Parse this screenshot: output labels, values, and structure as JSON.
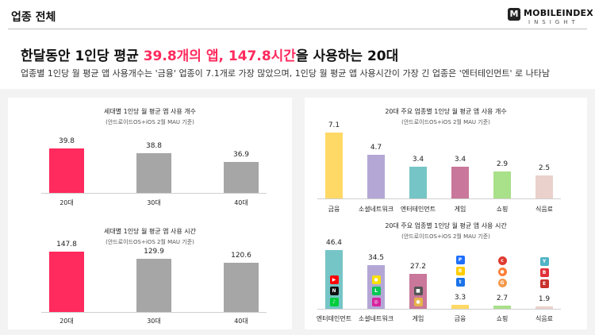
{
  "header": {
    "section_title": "업종 전체",
    "logo_mark": "M",
    "logo_name": "MOBILEINDEX",
    "logo_sub": "INSIGHT"
  },
  "headline": {
    "part1": "한달동안 1인당 평균 ",
    "highlight": "39.8개의 앱, 147.8시간",
    "part2": "을 사용하는 20대"
  },
  "subheadline": "업종별 1인당 월 평균 앱 사용개수는 '금융' 업종이 7.1개로 가장 많았으며, 1인당 월 평균 앱 사용시간이 가장 긴 업종은 '엔터테인먼트' 로 나타남",
  "colors": {
    "highlight": "#ff2a5d",
    "gray_bar": "#a6a6a6",
    "finance": "#ffd966",
    "sns": "#b4a7d6",
    "entertainment": "#76c5c6",
    "game": "#c9779a",
    "shopping": "#a9e08a",
    "food": "#ead1cb"
  },
  "chart_data": [
    {
      "type": "bar",
      "title": "세대별 1인당 월 평균 앱 사용 개수",
      "note": "(안드로이드OS+iOS 2월 MAU 기준)",
      "categories": [
        "20대",
        "30대",
        "40대"
      ],
      "values": [
        39.8,
        38.8,
        36.9
      ],
      "value_labels": [
        "39.8",
        "38.8",
        "36.9"
      ],
      "ylim": [
        30,
        42
      ],
      "colors": [
        "#ff2a5d",
        "#a6a6a6",
        "#a6a6a6"
      ]
    },
    {
      "type": "bar",
      "title": "세대별 1인당 월 평균 앱 사용 시간",
      "note": "(안드로이드OS+iOS 2월 MAU 기준)",
      "categories": [
        "20대",
        "30대",
        "40대"
      ],
      "values": [
        147.8,
        129.9,
        120.6
      ],
      "value_labels": [
        "147.8",
        "129.9",
        "120.6"
      ],
      "ylim": [
        0,
        155
      ],
      "colors": [
        "#ff2a5d",
        "#a6a6a6",
        "#a6a6a6"
      ]
    },
    {
      "type": "bar",
      "title": "20대 주요 업종별 1인당 월 평균 앱 사용 개수",
      "note": "(안드로이드OS+iOS 2월 MAU 기준)",
      "categories": [
        "금융",
        "소셜네트워크",
        "엔터테인먼트",
        "게임",
        "쇼핑",
        "식음료"
      ],
      "values": [
        7.1,
        4.7,
        3.4,
        3.4,
        2.9,
        2.5
      ],
      "value_labels": [
        "7.1",
        "4.7",
        "3.4",
        "3.4",
        "2.9",
        "2.5"
      ],
      "ylim": [
        0,
        7.5
      ],
      "colors": [
        "#ffd966",
        "#b4a7d6",
        "#76c5c6",
        "#c9779a",
        "#a9e08a",
        "#ead1cb"
      ]
    },
    {
      "type": "bar",
      "title": "20대 주요 업종별 1인당 월 평균 앱 사용 시간",
      "note": "(안드로이드OS+iOS 2월 MAU 기준)",
      "categories": [
        "엔터테인먼트",
        "소셜네트워크",
        "게임",
        "금융",
        "쇼핑",
        "식음료"
      ],
      "values": [
        46.4,
        34.5,
        27.2,
        3.3,
        2.7,
        1.9
      ],
      "value_labels": [
        "46.4",
        "34.5",
        "27.2",
        "3.3",
        "2.7",
        "1.9"
      ],
      "ylim": [
        0,
        50
      ],
      "colors": [
        "#76c5c6",
        "#b4a7d6",
        "#c9779a",
        "#ffd966",
        "#a9e08a",
        "#ead1cb"
      ],
      "app_icons": [
        [
          "youtube-icon",
          "netflix-icon",
          "melon-icon"
        ],
        [
          "kakaotalk-icon",
          "line-icon",
          "instagram-icon"
        ],
        [
          "roblox-icon",
          "cookierun-icon"
        ],
        [
          "pay-icon",
          "kakaobank-icon",
          "toss-icon"
        ],
        [
          "coupang-icon",
          "danggeun-icon",
          "gmarket-icon"
        ],
        [
          "yogiyo-icon",
          "baemin-icon",
          "coupangeats-icon"
        ]
      ]
    }
  ],
  "icon_glyphs": {
    "youtube-icon": {
      "bg": "#ff0000",
      "text": "▶",
      "round": false
    },
    "netflix-icon": {
      "bg": "#111111",
      "text": "N",
      "round": false
    },
    "melon-icon": {
      "bg": "#00cd3c",
      "text": "♪",
      "round": false
    },
    "kakaotalk-icon": {
      "bg": "#f9e000",
      "text": "●",
      "round": false
    },
    "line-icon": {
      "bg": "#06c755",
      "text": "L",
      "round": false
    },
    "instagram-icon": {
      "bg": "#d6249f",
      "text": "◎",
      "round": false
    },
    "roblox-icon": {
      "bg": "#555555",
      "text": "■",
      "round": false
    },
    "cookierun-icon": {
      "bg": "#e6b34a",
      "text": "●",
      "round": false
    },
    "pay-icon": {
      "bg": "#1e6fff",
      "text": "P",
      "round": false
    },
    "kakaobank-icon": {
      "bg": "#ffcd00",
      "text": "B",
      "round": false
    },
    "toss-icon": {
      "bg": "#1a73e8",
      "text": "t",
      "round": false
    },
    "coupang-icon": {
      "bg": "#e03a2f",
      "text": "c",
      "round": true
    },
    "danggeun-icon": {
      "bg": "#ff7e36",
      "text": "●",
      "round": true
    },
    "gmarket-icon": {
      "bg": "#f2994a",
      "text": "G",
      "round": true
    },
    "yogiyo-icon": {
      "bg": "#4fb3c6",
      "text": "Y",
      "round": false
    },
    "baemin-icon": {
      "bg": "#e0303a",
      "text": "B",
      "round": false
    },
    "coupangeats-icon": {
      "bg": "#c9302c",
      "text": "E",
      "round": false
    }
  }
}
